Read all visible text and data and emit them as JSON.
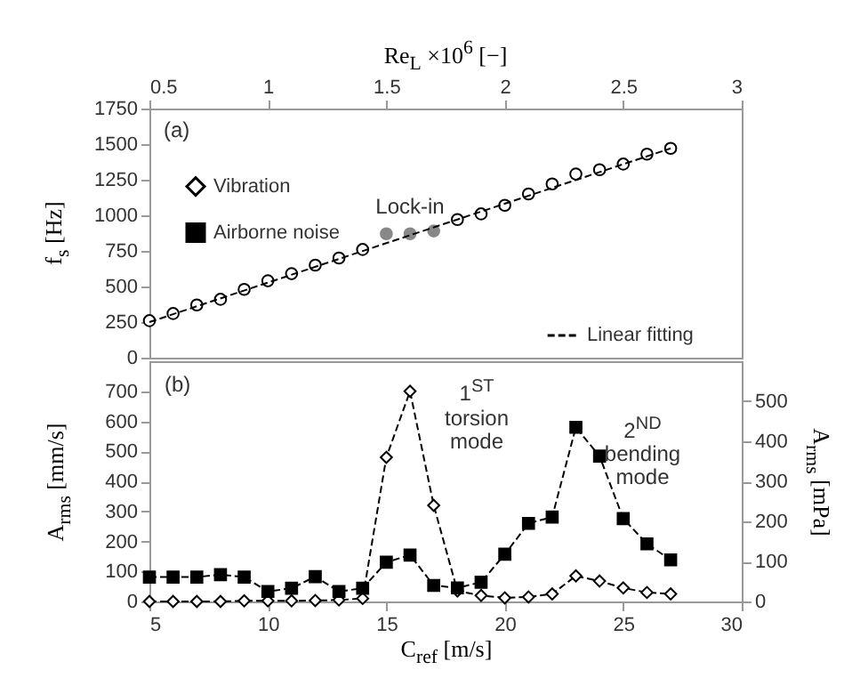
{
  "chart_data": [
    {
      "type": "scatter",
      "xlabel": "Re$_{L}$ ×10$^{6}$ [−]",
      "ylabel": "f$_{s}$ [Hz]",
      "xlim": [
        0.5,
        3
      ],
      "xticks": [
        0.5,
        1,
        1.5,
        2,
        2.5,
        3
      ],
      "ylim": [
        0,
        1750
      ],
      "yticks": [
        0,
        250,
        500,
        750,
        1000,
        1250,
        1500,
        1750
      ],
      "legend": "bottom right",
      "annotations": [
        "(a)",
        {
          "text": "Lock-in",
          "x": 1.6,
          "y": 870
        }
      ],
      "series": [
        {
          "color": "#000000",
          "marker": "circle",
          "x": [
            0.5,
            0.6,
            0.7,
            0.8,
            0.9,
            1.0,
            1.1,
            1.2,
            1.3,
            1.4,
            1.8,
            1.9,
            2.0,
            2.1,
            2.2,
            2.3,
            2.4,
            2.5,
            2.6,
            2.7
          ],
          "values": [
            260,
            310,
            370,
            410,
            480,
            540,
            590,
            650,
            700,
            760,
            970,
            1010,
            1070,
            1150,
            1220,
            1290,
            1320,
            1360,
            1430,
            1470
          ]
        },
        {
          "color": "#888888",
          "marker": "circle",
          "x": [
            1.5,
            1.6,
            1.7
          ],
          "values": [
            870,
            870,
            890
          ]
        },
        {
          "name": "Linear fitting",
          "type": "line",
          "line_style": "dashed",
          "marker": "none",
          "color": "#000000",
          "x": [
            0.5,
            2.7
          ],
          "values": [
            250,
            1470
          ]
        }
      ]
    },
    {
      "type": "line",
      "xlabel": "C$_{ref}$ [m/s]",
      "ylabel": "A$_{rms}$ [mm/s]",
      "y2label": "A$_{rms}$ [mPa]",
      "xlim": [
        5,
        30
      ],
      "xticks": [
        5,
        10,
        15,
        20,
        25,
        30
      ],
      "ylim": [
        0,
        800
      ],
      "yticks": [
        0,
        100,
        200,
        300,
        400,
        500,
        600,
        700
      ],
      "y2lim": [
        0,
        600
      ],
      "y2ticks": [
        0,
        100,
        200,
        300,
        400,
        500
      ],
      "legend": "left",
      "line_style": "dashed",
      "annotations": [
        "(b)",
        {
          "text": "1$^{ST}$ torsion mode",
          "x": 16,
          "y": 700
        },
        {
          "text": "2$^{ND}$ bending mode",
          "x": 23,
          "y": 580
        }
      ],
      "x": [
        5,
        6,
        7,
        8,
        9,
        10,
        11,
        12,
        13,
        14,
        15,
        16,
        17,
        18,
        19,
        20,
        21,
        22,
        23,
        24,
        25,
        26,
        27
      ],
      "series": [
        {
          "name": "Vibration",
          "color": "#000000",
          "marker": "diamond",
          "values": [
            0,
            0,
            0,
            0,
            2,
            2,
            2,
            3,
            5,
            10,
            480,
            700,
            320,
            35,
            20,
            12,
            15,
            25,
            85,
            68,
            45,
            30,
            25
          ]
        },
        {
          "name": "Airborne noise",
          "color": "#000000",
          "marker": "square",
          "axis": "y2",
          "values": [
            61,
            61,
            61,
            67,
            61,
            25,
            33,
            62,
            25,
            33,
            98,
            116,
            40,
            34,
            48,
            118,
            195,
            211,
            435,
            363,
            207,
            144,
            104
          ]
        }
      ]
    }
  ]
}
